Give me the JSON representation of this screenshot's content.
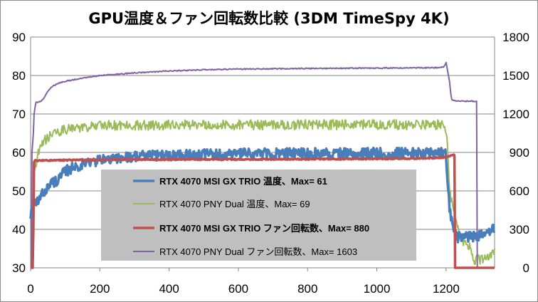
{
  "chart_data": {
    "type": "line",
    "title": "GPU温度＆ファン回転数比較 (3DM TimeSpy 4K)",
    "xlabel": "",
    "ylabel": "",
    "y2label": "",
    "xlim": [
      0,
      1340
    ],
    "ylim": [
      30,
      90
    ],
    "y2lim": [
      0,
      1800
    ],
    "xticks": [
      0,
      200,
      400,
      600,
      800,
      1000,
      1200
    ],
    "yticks": [
      30,
      40,
      50,
      60,
      70,
      80,
      90
    ],
    "y2ticks": [
      0,
      300,
      600,
      900,
      1200,
      1500,
      1800
    ],
    "grid": "horizontal",
    "legend_position": "bottom-left inside plot",
    "series": [
      {
        "name": "RTX 4070 MSI GX TRIO 温度、Max= 61",
        "axis": "left",
        "color": "#4a7ebb",
        "bold_legend": true,
        "stroke_width": 3.5,
        "noise": 1.4,
        "x": [
          0,
          3,
          8,
          20,
          40,
          60,
          80,
          100,
          120,
          150,
          200,
          250,
          300,
          400,
          500,
          600,
          700,
          800,
          900,
          1000,
          1100,
          1190,
          1200,
          1205,
          1210,
          1220,
          1230,
          1250,
          1290,
          1300,
          1320,
          1340
        ],
        "values": [
          44,
          45,
          46,
          47,
          50,
          52,
          53,
          55,
          56,
          57,
          58,
          58.5,
          59,
          59.3,
          59.5,
          59.6,
          59.7,
          59.8,
          59.8,
          59.8,
          59.8,
          59.8,
          59.5,
          52,
          45,
          40,
          38,
          38,
          38,
          39,
          39.5,
          40
        ]
      },
      {
        "name": "RTX 4070 PNY Dual 温度、Max= 69",
        "axis": "left",
        "color": "#9bbb59",
        "bold_legend": false,
        "stroke_width": 2,
        "noise": 1.3,
        "x": [
          0,
          5,
          10,
          20,
          30,
          40,
          60,
          80,
          100,
          150,
          200,
          300,
          400,
          600,
          800,
          1000,
          1100,
          1195,
          1200,
          1205,
          1210,
          1230,
          1250,
          1270,
          1280,
          1300,
          1320,
          1340
        ],
        "values": [
          30,
          30,
          55,
          59,
          62,
          63,
          64.5,
          65.5,
          66,
          66.5,
          67,
          67,
          67.2,
          67.2,
          67.2,
          67.2,
          67.2,
          67.2,
          66,
          60,
          50,
          41,
          37,
          35,
          32,
          32,
          33,
          34
        ]
      },
      {
        "name": "RTX 4070 MSI GX TRIO ファン回転数、Max= 880",
        "axis": "right",
        "color": "#c0504d",
        "bold_legend": true,
        "stroke_width": 3.5,
        "noise": 5,
        "x": [
          0,
          7,
          8,
          9,
          12,
          20,
          50,
          100,
          200,
          280,
          400,
          600,
          800,
          1000,
          1150,
          1200,
          1215,
          1225,
          1226,
          1230,
          1340
        ],
        "values": [
          0,
          0,
          300,
          820,
          838,
          838,
          838,
          840,
          842,
          845,
          845,
          846,
          848,
          850,
          855,
          862,
          880,
          880,
          0,
          0,
          0
        ]
      },
      {
        "name": "RTX 4070 PNY Dual ファン回転数、Max= 1603",
        "axis": "right",
        "color": "#8064a2",
        "bold_legend": false,
        "stroke_width": 2,
        "noise": 4,
        "x": [
          0,
          3,
          4,
          8,
          10,
          15,
          30,
          40,
          50,
          60,
          80,
          100,
          150,
          200,
          300,
          400,
          500,
          600,
          800,
          1000,
          1100,
          1180,
          1195,
          1200,
          1210,
          1215,
          1220,
          1230,
          1280,
          1288,
          1289,
          1290,
          1340
        ],
        "values": [
          0,
          0,
          900,
          1050,
          1200,
          1290,
          1300,
          1330,
          1380,
          1410,
          1440,
          1455,
          1480,
          1500,
          1520,
          1535,
          1545,
          1550,
          1555,
          1558,
          1560,
          1562,
          1570,
          1600,
          1450,
          1320,
          1305,
          1300,
          1300,
          1300,
          0,
          0,
          0
        ]
      }
    ]
  }
}
